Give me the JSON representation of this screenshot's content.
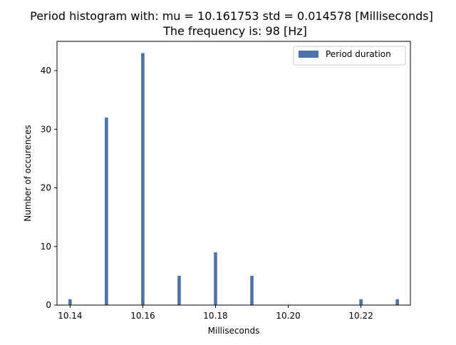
{
  "chart_data": {
    "type": "bar",
    "title_line1": "Period histogram with: mu = 10.161753  std = 0.014578 [Milliseconds]",
    "title_line2": "The frequency is: 98 [Hz]",
    "xlabel": "Milliseconds",
    "ylabel": "Number of occurences",
    "xlim": [
      10.1364,
      10.2336
    ],
    "ylim": [
      0,
      45
    ],
    "x_ticks": [
      10.14,
      10.16,
      10.18,
      10.2,
      10.22
    ],
    "x_tick_labels": [
      "10.14",
      "10.16",
      "10.18",
      "10.20",
      "10.22"
    ],
    "y_ticks": [
      0,
      10,
      20,
      30,
      40
    ],
    "y_tick_labels": [
      "0",
      "10",
      "20",
      "30",
      "40"
    ],
    "bin_width": 0.0009,
    "series": [
      {
        "name": "Period duration",
        "color": "#4c72b0",
        "x": [
          10.14,
          10.15,
          10.16,
          10.17,
          10.18,
          10.19,
          10.22,
          10.23
        ],
        "values": [
          1,
          32,
          43,
          5,
          9,
          5,
          1,
          1
        ]
      }
    ],
    "legend_position": "top-right",
    "grid": false
  }
}
